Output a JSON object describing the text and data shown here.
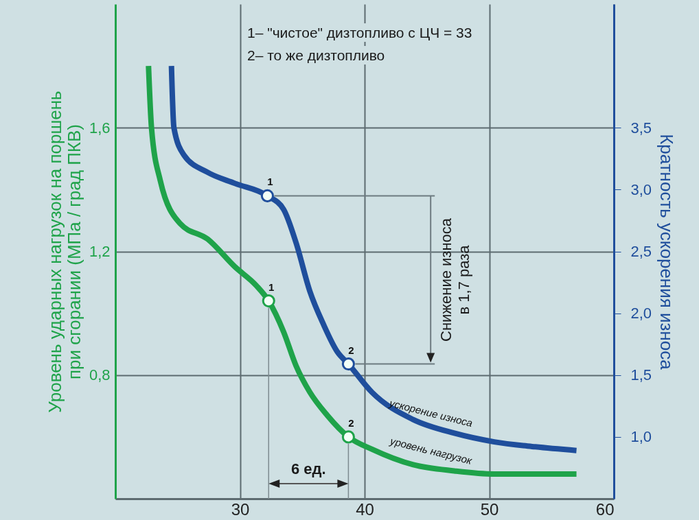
{
  "chart_data": {
    "type": "line",
    "ylabel": "Уровень ударных нагрузок на поршень\nпри сгорании (МПа / град ПКВ)",
    "y2label": "Кратность ускорения износа",
    "xlim": [
      20,
      60
    ],
    "xticks": [
      30,
      40,
      50,
      60
    ],
    "ylim": [
      0.4,
      2.0
    ],
    "yticks": [
      {
        "value": 0.8,
        "label": "0,8"
      },
      {
        "value": 1.2,
        "label": "1,2"
      },
      {
        "value": 1.6,
        "label": "1,6"
      }
    ],
    "y2lim": [
      0.5,
      4.5
    ],
    "y2ticks": [
      {
        "value": 1.0,
        "label": "1,0"
      },
      {
        "value": 1.5,
        "label": "1,5"
      },
      {
        "value": 2.0,
        "label": "2,0"
      },
      {
        "value": 2.5,
        "label": "2,5"
      },
      {
        "value": 3.0,
        "label": "3,0"
      },
      {
        "value": 3.5,
        "label": "3,5"
      }
    ],
    "grid": true,
    "marker": "none",
    "line_style": "solid",
    "series": [
      {
        "name": "уровень нагрузок",
        "color": "#1fa34a",
        "x": [
          22.66,
          22.9,
          23.6,
          25.2,
          27.4,
          29.6,
          31.3,
          32.3,
          33.5,
          34.5,
          35.6,
          37.0,
          38.7,
          40.6,
          43.9,
          47.2,
          50.4,
          53.7,
          57.0
        ],
        "values": [
          1.8,
          1.6,
          1.43,
          1.29,
          1.24,
          1.15,
          1.09,
          1.04,
          0.94,
          0.83,
          0.745,
          0.67,
          0.6,
          0.56,
          0.51,
          0.49,
          0.48,
          0.48,
          0.48
        ]
      },
      {
        "name": "ускорение износа",
        "color": "#1f4e9c",
        "axis": "y2",
        "x": [
          24.5,
          24.7,
          25.5,
          27.4,
          29.6,
          32.2,
          33.5,
          34.5,
          35.6,
          36.7,
          37.8,
          38.7,
          40.6,
          43.9,
          47.2,
          50.4,
          53.7,
          57.0
        ],
        "values": [
          4.0,
          3.5,
          3.28,
          3.14,
          3.05,
          2.95,
          2.84,
          2.57,
          2.18,
          1.91,
          1.69,
          1.59,
          1.36,
          1.14,
          1.03,
          0.96,
          0.92,
          0.89
        ]
      },
      {
        "type": "scatter",
        "marker": "circle",
        "color": "#1fa34a",
        "x": [
          32.3,
          38.7
        ],
        "values": [
          1.04,
          0.6
        ]
      },
      {
        "type": "scatter",
        "marker": "circle",
        "color": "#1f4e9c",
        "axis": "y2",
        "x": [
          32.2,
          38.7
        ],
        "values": [
          2.95,
          1.59
        ]
      }
    ],
    "annotations": [
      "1– \"чистое\" дизтопливо с ЦЧ = 33",
      "2– то же дизтопливо",
      "Снижение износа\nв 1,7 раза",
      "6 ед.",
      {
        "text": "1",
        "x": 32.3,
        "y": 1.04
      },
      {
        "text": "2",
        "x": 38.7,
        "y": 0.6
      },
      {
        "text": "1",
        "x": 32.2,
        "y": 1.38
      },
      {
        "text": "2",
        "x": 38.7,
        "y": 0.836
      }
    ]
  }
}
